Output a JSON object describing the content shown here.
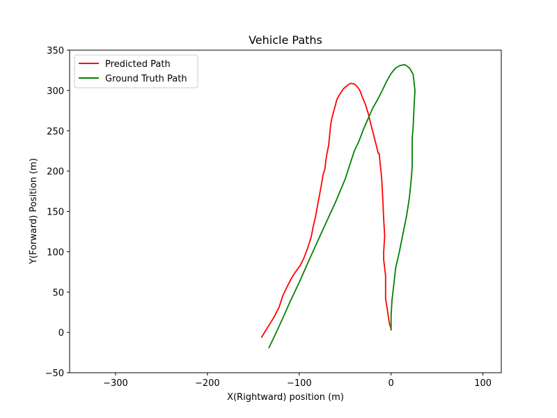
{
  "chart_data": {
    "type": "line",
    "title": "Vehicle Paths",
    "xlabel": "X(Rightward) position (m)",
    "ylabel": "Y(Forward) Position (m)",
    "xlim": [
      -350,
      120
    ],
    "ylim": [
      -50,
      350
    ],
    "xticks": [
      -300,
      -200,
      -100,
      0,
      100
    ],
    "yticks": [
      -50,
      0,
      50,
      100,
      150,
      200,
      250,
      300,
      350
    ],
    "xtick_labels": [
      "−300",
      "−200",
      "−100",
      "0",
      "100"
    ],
    "ytick_labels": [
      "−50",
      "0",
      "50",
      "100",
      "150",
      "200",
      "250",
      "300",
      "350"
    ],
    "grid": false,
    "legend_position": "upper-left",
    "series": [
      {
        "name": "Predicted Path",
        "color": "#ff0000",
        "x": [
          -141,
          -135,
          -128,
          -122,
          -118,
          -113,
          -108,
          -104,
          -99,
          -95,
          -91,
          -87,
          -85,
          -82,
          -80,
          -78,
          -76,
          -74,
          -72,
          -71,
          -70,
          -68,
          -67,
          -66,
          -65,
          -63,
          -61,
          -59,
          -56,
          -52,
          -48,
          -44,
          -40,
          -37,
          -34,
          -31,
          -28,
          -25,
          -22,
          -19,
          -17,
          -15,
          -14,
          -13,
          -12,
          -11,
          -10,
          -9,
          -8,
          -7,
          -8,
          -8,
          -7,
          -6,
          -6,
          -6,
          -6,
          -5,
          -4,
          -3,
          -2,
          -1,
          0,
          0
        ],
        "y": [
          -6,
          5,
          18,
          31,
          45,
          57,
          68,
          75,
          83,
          92,
          104,
          118,
          130,
          145,
          158,
          170,
          182,
          196,
          203,
          213,
          221,
          232,
          243,
          255,
          263,
          272,
          280,
          289,
          295,
          302,
          306,
          309,
          308,
          305,
          300,
          291,
          283,
          272,
          258,
          245,
          236,
          227,
          222,
          222,
          210,
          200,
          187,
          165,
          140,
          120,
          100,
          90,
          80,
          70,
          60,
          50,
          42,
          35,
          28,
          20,
          12,
          8,
          5,
          3
        ]
      },
      {
        "name": "Ground Truth Path",
        "color": "#008000",
        "x": [
          -133,
          -125,
          -117,
          -110,
          -100,
          -90,
          -80,
          -70,
          -60,
          -50,
          -40,
          -35,
          -30,
          -25,
          -20,
          -15,
          -10,
          -5,
          0,
          5,
          10,
          15,
          20,
          24,
          26,
          25,
          24,
          23,
          23,
          23,
          22,
          20,
          17,
          13,
          9,
          5,
          3,
          1,
          0,
          0,
          0
        ],
        "y": [
          -19,
          0,
          20,
          38,
          62,
          88,
          113,
          138,
          163,
          190,
          225,
          237,
          252,
          265,
          278,
          288,
          299,
          311,
          321,
          328,
          331,
          332,
          328,
          320,
          300,
          280,
          255,
          240,
          220,
          205,
          190,
          168,
          145,
          123,
          100,
          80,
          60,
          40,
          20,
          10,
          3
        ]
      }
    ]
  }
}
